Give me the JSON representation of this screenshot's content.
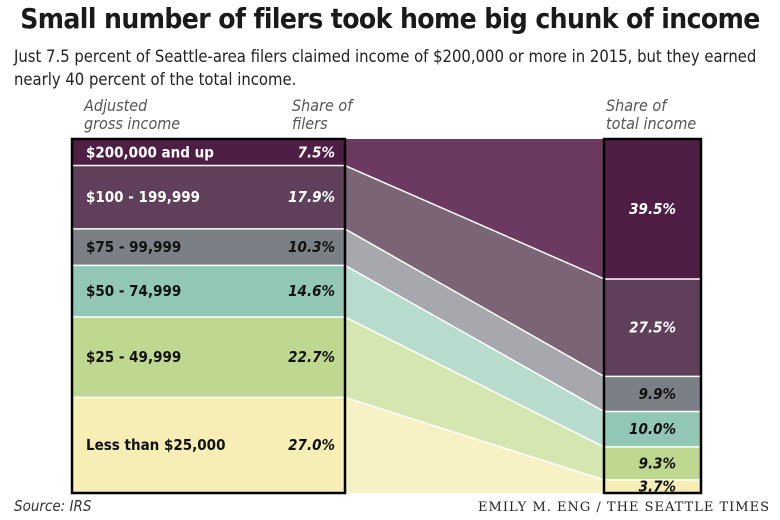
{
  "title": "Small number of filers took home big chunk of income",
  "subtitle": "Just 7.5 percent of Seattle-area filers claimed income of $200,000 or more in 2015, but they earned nearly 40 percent of the total income.",
  "headers": {
    "agi": "Adjusted\ngross income",
    "filers": "Share of\nfilers",
    "income": "Share of\ntotal income"
  },
  "source": "Source: IRS",
  "credit": "EMILY M. ENG / THE SEATTLE TIMES",
  "chart_data": {
    "type": "bar",
    "title": "Small number of filers took home big chunk of income",
    "categories": [
      "$200,000 and up",
      "$100 - 199,999",
      "$75 - 99,999",
      "$50 - 74,999",
      "$25 - 49,999",
      "Less than $25,000"
    ],
    "series": [
      {
        "name": "Share of filers",
        "values": [
          7.5,
          17.9,
          10.3,
          14.6,
          22.7,
          27.0
        ],
        "labels": [
          "7.5%",
          "17.9%",
          "10.3%",
          "14.6%",
          "22.7%",
          "27.0%"
        ]
      },
      {
        "name": "Share of total income",
        "values": [
          39.5,
          27.5,
          9.9,
          10.0,
          9.3,
          3.7
        ],
        "labels": [
          "39.5%",
          "27.5%",
          "9.9%",
          "10.0%",
          "9.3%",
          "3.7%"
        ]
      }
    ],
    "colors": [
      "#4e1e44",
      "#5f3f5a",
      "#7b8087",
      "#93c7b5",
      "#bfd890",
      "#f6eeb4"
    ],
    "flow_colors": [
      "#6c3a60",
      "#7b6475",
      "#a6a8ae",
      "#b7dccd",
      "#d6e6b0",
      "#f7f2c6"
    ],
    "text_colors": [
      "#ffffff",
      "#ffffff",
      "#111111",
      "#111111",
      "#111111",
      "#111111"
    ]
  }
}
